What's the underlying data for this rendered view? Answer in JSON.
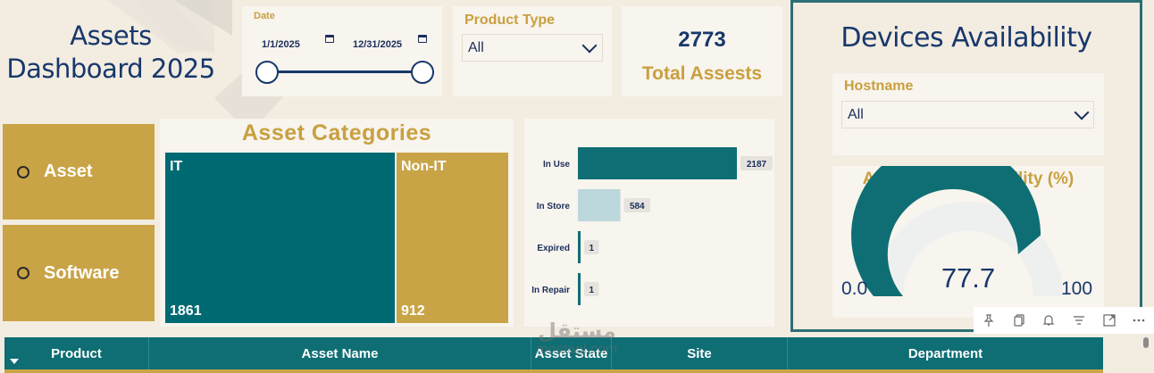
{
  "header": {
    "title_line1": "Assets",
    "title_line2": "Dashboard 2025"
  },
  "date_slicer": {
    "label": "Date",
    "start": "1/1/2025",
    "end": "12/31/2025",
    "range_start_fraction": 0.0,
    "range_end_fraction": 1.0
  },
  "product_type": {
    "label": "Product Type",
    "selected": "All"
  },
  "kpi": {
    "value": "2773",
    "label": "Total Assests"
  },
  "devices": {
    "title": "Devices Availability",
    "hostname": {
      "label": "Hostname",
      "selected": "All"
    },
    "gauge": {
      "title": "Average of Availability (%)",
      "min": "0.0",
      "max": "100",
      "value": "77.7",
      "value_num": 77.7,
      "fill_color": "#0e6e74",
      "track_color": "#eef0ef"
    }
  },
  "nav": {
    "asset": "Asset",
    "software": "Software"
  },
  "treemap": {
    "title": "Asset Categories",
    "tiles": [
      {
        "name": "IT",
        "value": "1861",
        "color": "#006a73"
      },
      {
        "name": "Non-IT",
        "value": "912",
        "color": "#c9a446"
      }
    ]
  },
  "chart_data": {
    "type": "bar",
    "orientation": "horizontal",
    "categories": [
      "In Use",
      "In Store",
      "Expired",
      "In Repair"
    ],
    "values": [
      2187,
      584,
      1,
      1
    ],
    "value_labels": [
      "2187",
      "584",
      "1",
      "1"
    ],
    "colors": [
      "#0e6e74",
      "#bcd8dc",
      "#0e6e74",
      "#0e6e74"
    ],
    "xlim": [
      0,
      2187
    ]
  },
  "toolbar": {
    "icons": [
      "pin-icon",
      "copy-icon",
      "bell-icon",
      "filter-icon",
      "expand-icon",
      "more-icon"
    ]
  },
  "table": {
    "columns": [
      "Product",
      "Asset Name",
      "Asset State",
      "Site",
      "Department"
    ]
  },
  "watermark": {
    "line1": "مستقل",
    "line2": "mostaql.com"
  }
}
